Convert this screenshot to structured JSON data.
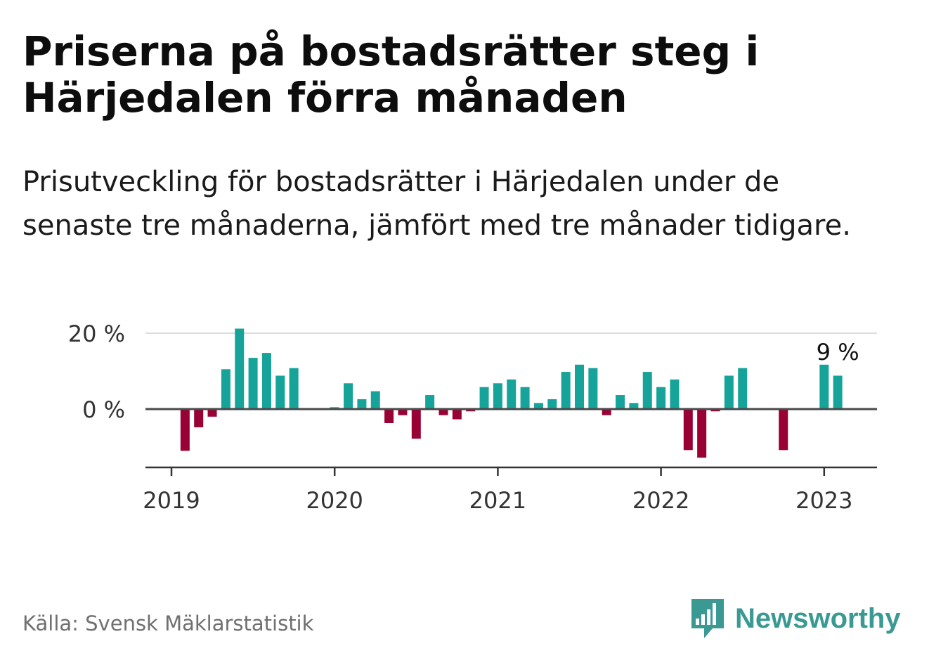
{
  "title": "Priserna på bostadsrätter steg i Härjedalen förra månaden",
  "subtitle": "Prisutveckling för bostadsrätter i Härjedalen under de senaste tre månaderna, jämfört med tre månader tidigare.",
  "source": "Källa: Svensk Mäklarstatistik",
  "brand": {
    "name": "Newsworthy",
    "logo_icon": "bar-chart-speech-bubble-icon",
    "color": "#3a9a93"
  },
  "colors": {
    "positive": "#16a49a",
    "negative": "#990033",
    "zero_line": "#4a4a4a",
    "grid": "#dddddd"
  },
  "chart_data": {
    "type": "bar",
    "title": "Priserna på bostadsrätter steg i Härjedalen förra månaden",
    "xlabel": "",
    "ylabel": "",
    "y_unit": "%",
    "ylim": [
      -15,
      21
    ],
    "y_ticks": [
      0,
      20
    ],
    "y_tick_labels": [
      "0 %",
      "20 %"
    ],
    "x_tick_labels": [
      "2019",
      "2020",
      "2021",
      "2022",
      "2023"
    ],
    "x_axis_type": "date",
    "grid": true,
    "legend": "none",
    "annotation": {
      "date": "2023-02",
      "text": "9 %"
    },
    "x": [
      "2019-01",
      "2019-02",
      "2019-03",
      "2019-04",
      "2019-05",
      "2019-06",
      "2019-07",
      "2019-08",
      "2019-09",
      "2019-10",
      "2019-11",
      "2019-12",
      "2020-01",
      "2020-02",
      "2020-03",
      "2020-04",
      "2020-05",
      "2020-06",
      "2020-07",
      "2020-08",
      "2020-09",
      "2020-10",
      "2020-11",
      "2020-12",
      "2021-01",
      "2021-02",
      "2021-03",
      "2021-04",
      "2021-05",
      "2021-06",
      "2021-07",
      "2021-08",
      "2021-09",
      "2021-10",
      "2021-11",
      "2021-12",
      "2022-01",
      "2022-02",
      "2022-03",
      "2022-04",
      "2022-05",
      "2022-06",
      "2022-07",
      "2022-08",
      "2022-09",
      "2022-10",
      "2022-11",
      "2022-12",
      "2023-01",
      "2023-02"
    ],
    "values": [
      null,
      -11,
      -4.8,
      -2,
      10.5,
      21.2,
      13.5,
      14.8,
      8.8,
      10.8,
      null,
      null,
      0.5,
      6.8,
      2.6,
      4.7,
      -3.7,
      -1.6,
      -7.8,
      3.7,
      -1.6,
      -2.7,
      -0.6,
      5.8,
      6.8,
      7.8,
      5.8,
      1.6,
      2.6,
      9.8,
      11.7,
      10.8,
      -1.6,
      3.7,
      1.6,
      9.8,
      5.8,
      7.8,
      -10.8,
      -12.8,
      -0.6,
      8.8,
      10.8,
      null,
      null,
      -10.8,
      null,
      null,
      11.7,
      8.8
    ]
  }
}
